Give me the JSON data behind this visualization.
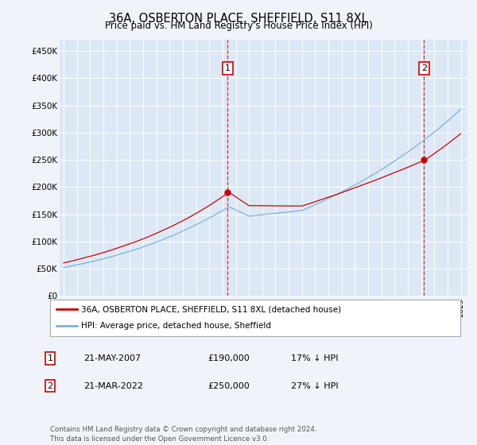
{
  "title": "36A, OSBERTON PLACE, SHEFFIELD, S11 8XL",
  "subtitle": "Price paid vs. HM Land Registry's House Price Index (HPI)",
  "hpi_color": "#7ab3d9",
  "price_color": "#cc0000",
  "background_color": "#f0f4fa",
  "plot_bg_color": "#dce8f5",
  "ylim": [
    0,
    470000
  ],
  "yticks": [
    0,
    50000,
    100000,
    150000,
    200000,
    250000,
    300000,
    350000,
    400000,
    450000
  ],
  "ytick_labels": [
    "£0",
    "£50K",
    "£100K",
    "£150K",
    "£200K",
    "£250K",
    "£300K",
    "£350K",
    "£400K",
    "£450K"
  ],
  "sale1_year": 2007.38,
  "sale1_price": 190000,
  "sale2_year": 2022.22,
  "sale2_price": 250000,
  "legend_label_price": "36A, OSBERTON PLACE, SHEFFIELD, S11 8XL (detached house)",
  "legend_label_hpi": "HPI: Average price, detached house, Sheffield",
  "table": [
    {
      "num": "1",
      "date": "21-MAY-2007",
      "price": "£190,000",
      "info": "17% ↓ HPI"
    },
    {
      "num": "2",
      "date": "21-MAR-2022",
      "price": "£250,000",
      "info": "27% ↓ HPI"
    }
  ],
  "footer": "Contains HM Land Registry data © Crown copyright and database right 2024.\nThis data is licensed under the Open Government Licence v3.0."
}
